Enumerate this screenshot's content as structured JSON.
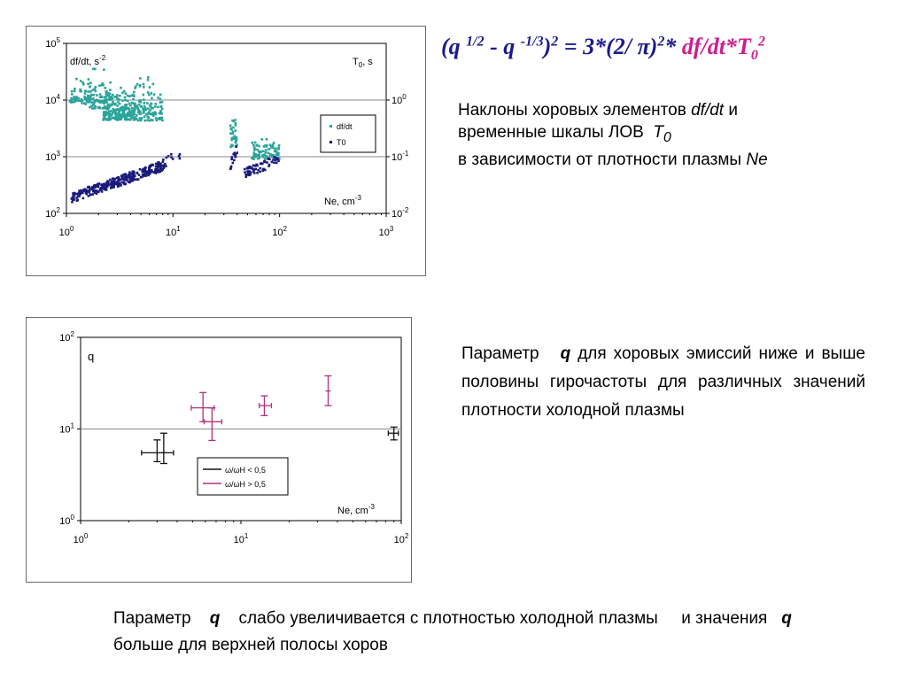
{
  "formula": {
    "open": "(q",
    "exp1": "1/2",
    "minus": "- q",
    "exp2": "-1/3",
    "close": ")",
    "exp3": "2",
    "eq": " = 3*(2/ π)",
    "exp4": "2",
    "star": "* ",
    "mag1": "df/dt",
    "mag2": "*T",
    "mag_sub": "0",
    "mag_sup": "2"
  },
  "desc1": {
    "line1": "Наклоны хоровых элементов",
    "line1_it": "df/dt",
    "line1_tail": "и",
    "line2": "временные шкалы ЛОВ",
    "line2_it": "T",
    "line2_sub": "0",
    "line3": "в зависимости от плотности плазмы",
    "line3_it": "Ne"
  },
  "desc2": {
    "pre": "Параметр",
    "q": "q",
    "post": "для хоровых эмиссий ниже и выше половины гирочастоты для различных значений плотности холодной плазмы"
  },
  "desc3": {
    "pre": "Параметр",
    "q1": "q",
    "mid": "слабо увеличивается с плотностью холодной плазмы",
    "mid2": "и значения",
    "q2": "q",
    "post": "больше для верхней полосы хоров"
  },
  "chart_data": [
    {
      "type": "scatter",
      "title": "",
      "xlabel": "Ne, cm⁻³",
      "ylabel_left": "df/dt, s⁻²",
      "ylabel_right": "T₀, s",
      "x_scale": "log",
      "y_scale": "log",
      "xlim": [
        1,
        1000
      ],
      "ylim_left": [
        100,
        100000
      ],
      "ylim_right": [
        0.01,
        10
      ],
      "grid": "horizontal lines at 10^3 and 10^4",
      "legend": "right",
      "x_ticks": [
        {
          "base": "10",
          "exp": "0"
        },
        {
          "base": "10",
          "exp": "1"
        },
        {
          "base": "10",
          "exp": "2"
        },
        {
          "base": "10",
          "exp": "3"
        }
      ],
      "y_ticks_left": [
        {
          "base": "10",
          "exp": "2"
        },
        {
          "base": "10",
          "exp": "3"
        },
        {
          "base": "10",
          "exp": "4"
        },
        {
          "base": "10",
          "exp": "5"
        }
      ],
      "y_ticks_right": [
        {
          "base": "10",
          "exp": "-2"
        },
        {
          "base": "10",
          "exp": "-1"
        },
        {
          "base": "10",
          "exp": "0"
        }
      ],
      "corner_left": {
        "text": "df/dt, s",
        "exp": "-2"
      },
      "corner_right": {
        "text": "T",
        "sub": "0",
        "tail": ", s"
      },
      "axis_label": {
        "text": "Ne, cm",
        "exp": "-3"
      },
      "series": [
        {
          "name": "df/dt",
          "color": "#2aa49a",
          "marker": "square",
          "axis": "left",
          "clusters": [
            {
              "x": [
                1.05,
                1.9
              ],
              "y": [
                6000,
                30000
              ],
              "n": 60
            },
            {
              "x": [
                1.6,
                2.6
              ],
              "y": [
                4000,
                60000
              ],
              "n": 80
            },
            {
              "x": [
                2.2,
                4.5
              ],
              "y": [
                3000,
                20000
              ],
              "n": 240
            },
            {
              "x": [
                4.5,
                8.0
              ],
              "y": [
                2500,
                35000
              ],
              "n": 110
            },
            {
              "x": [
                34,
                40
              ],
              "y": [
                800,
                15000
              ],
              "n": 30
            },
            {
              "x": [
                55,
                100
              ],
              "y": [
                700,
                2500
              ],
              "n": 90
            }
          ]
        },
        {
          "name": "T0",
          "color": "#1a1a7a",
          "marker": "square",
          "axis": "right",
          "clusters": [
            {
              "x": [
                1.1,
                8.0
              ],
              "y_band": [
                0.017,
                0.09
              ],
              "n": 300
            },
            {
              "x": [
                8.0,
                12
              ],
              "y_band": [
                0.07,
                0.12
              ],
              "n": 15
            },
            {
              "x": [
                34,
                40
              ],
              "y_band": [
                0.06,
                0.15
              ],
              "n": 15
            },
            {
              "x": [
                45,
                100
              ],
              "y_band": [
                0.045,
                0.1
              ],
              "n": 60
            }
          ]
        }
      ]
    },
    {
      "type": "scatter",
      "title": "",
      "xlabel": "Ne, cm⁻³",
      "ylabel": "q",
      "x_scale": "log",
      "y_scale": "log",
      "xlim": [
        1,
        100
      ],
      "ylim": [
        1,
        100
      ],
      "grid": "horizontal line at 10^1",
      "legend": "lower-right",
      "x_ticks": [
        {
          "base": "10",
          "exp": "0"
        },
        {
          "base": "10",
          "exp": "1"
        },
        {
          "base": "10",
          "exp": "2"
        }
      ],
      "y_ticks": [
        {
          "base": "10",
          "exp": "0"
        },
        {
          "base": "10",
          "exp": "1"
        },
        {
          "base": "10",
          "exp": "2"
        }
      ],
      "axis_label": {
        "text": "Ne, cm",
        "exp": "-3"
      },
      "series": [
        {
          "name": "ω/ωH < 0,5",
          "color": "#111111",
          "points": [
            {
              "x": 3.0,
              "y": 5.5,
              "xerr": [
                2.4,
                3.8
              ],
              "yerr": [
                4.4,
                7.6
              ]
            },
            {
              "x": 3.3,
              "y": 5.5,
              "xerr": [
                3.3,
                3.3
              ],
              "yerr": [
                4.2,
                9.0
              ]
            },
            {
              "x": 90,
              "y": 9.0,
              "xerr": [
                83,
                96
              ],
              "yerr": [
                7.6,
                10.5
              ]
            }
          ]
        },
        {
          "name": "ω/ωH > 0,5",
          "color": "#b0327c",
          "points": [
            {
              "x": 5.8,
              "y": 17,
              "xerr": [
                4.9,
                6.8
              ],
              "yerr": [
                12,
                25
              ]
            },
            {
              "x": 6.6,
              "y": 12,
              "xerr": [
                5.9,
                7.6
              ],
              "yerr": [
                7.5,
                17
              ]
            },
            {
              "x": 14,
              "y": 18,
              "xerr": [
                13,
                15.5
              ],
              "yerr": [
                14,
                23
              ]
            },
            {
              "x": 35,
              "y": 26,
              "xerr": [
                35,
                35
              ],
              "yerr": [
                18,
                38
              ]
            }
          ]
        }
      ]
    }
  ]
}
